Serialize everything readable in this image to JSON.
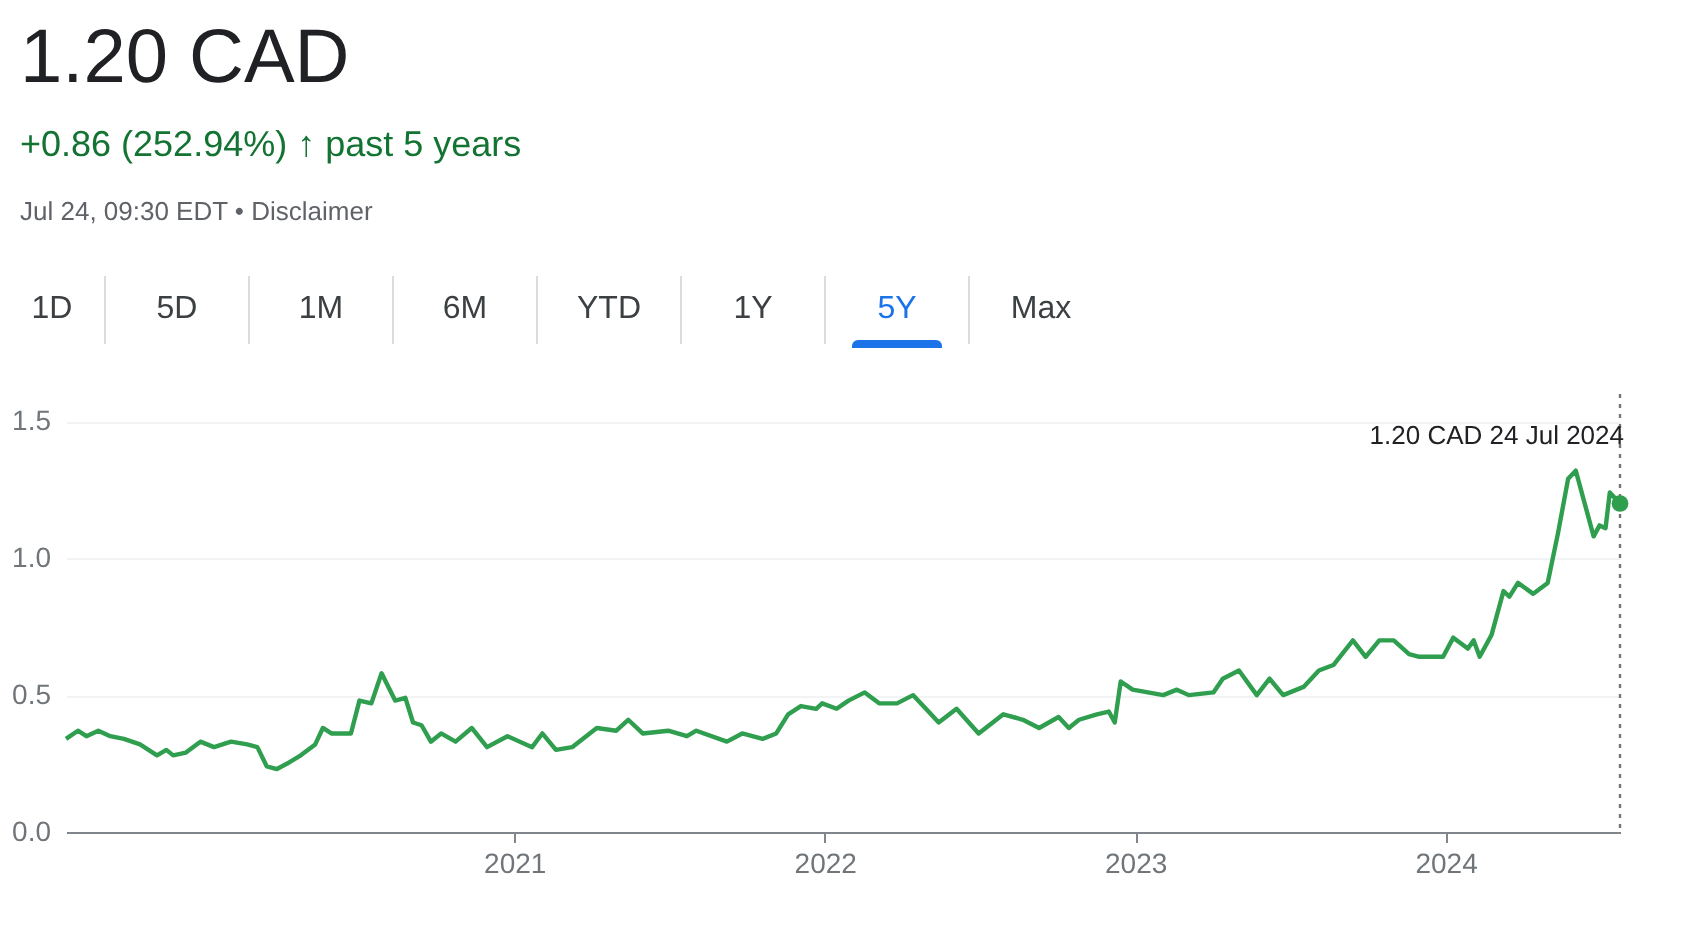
{
  "chart_data": {
    "type": "line",
    "title": "1.20 CAD",
    "subtitle": "+0.86 (252.94%) ↑ past 5 years",
    "annotations": [
      "Jul 24, 09:30 EDT • Disclaimer",
      "1D",
      "5D",
      "1M",
      "6M",
      "YTD",
      "1Y",
      "5Y",
      "Max",
      {
        "text": "1.20 CAD  24 Jul 2024",
        "x": "2024-07-24",
        "y": 1.2
      }
    ],
    "x": [
      "2019-07-24",
      "2019-08-07",
      "2019-08-17",
      "2019-08-31",
      "2019-09-14",
      "2019-09-30",
      "2019-10-19",
      "2019-11-08",
      "2019-11-19",
      "2019-11-27",
      "2019-12-12",
      "2019-12-29",
      "2020-01-14",
      "2020-02-03",
      "2020-02-22",
      "2020-03-05",
      "2020-03-16",
      "2020-03-28",
      "2020-04-09",
      "2020-04-25",
      "2020-05-12",
      "2020-05-21",
      "2020-05-31",
      "2020-06-23",
      "2020-07-03",
      "2020-07-17",
      "2020-07-29",
      "2020-08-14",
      "2020-08-26",
      "2020-09-04",
      "2020-09-14",
      "2020-09-25",
      "2020-10-07",
      "2020-10-24",
      "2020-11-12",
      "2020-11-30",
      "2020-12-24",
      "2021-01-22",
      "2021-02-03",
      "2021-02-19",
      "2021-03-10",
      "2021-04-08",
      "2021-05-01",
      "2021-05-15",
      "2021-06-01",
      "2021-07-01",
      "2021-07-23",
      "2021-08-03",
      "2021-09-08",
      "2021-09-26",
      "2021-10-20",
      "2021-11-05",
      "2021-11-19",
      "2021-12-04",
      "2021-12-22",
      "2021-12-29",
      "2022-01-15",
      "2022-01-29",
      "2022-02-17",
      "2022-03-06",
      "2022-03-27",
      "2022-04-15",
      "2022-05-03",
      "2022-05-15",
      "2022-06-05",
      "2022-07-01",
      "2022-07-30",
      "2022-08-22",
      "2022-09-10",
      "2022-10-03",
      "2022-10-15",
      "2022-10-27",
      "2022-11-17",
      "2022-12-01",
      "2022-12-08",
      "2022-12-15",
      "2022-12-29",
      "2023-02-03",
      "2023-02-19",
      "2023-03-05",
      "2023-04-03",
      "2023-04-14",
      "2023-05-03",
      "2023-05-24",
      "2023-06-08",
      "2023-06-24",
      "2023-07-18",
      "2023-08-05",
      "2023-08-22",
      "2023-09-14",
      "2023-09-29",
      "2023-10-15",
      "2023-11-01",
      "2023-11-19",
      "2023-12-01",
      "2023-12-29",
      "2024-01-10",
      "2024-01-27",
      "2024-02-03",
      "2024-02-10",
      "2024-02-24",
      "2024-03-09",
      "2024-03-16",
      "2024-03-26",
      "2024-04-13",
      "2024-04-30",
      "2024-05-12",
      "2024-05-24",
      "2024-06-02",
      "2024-06-23",
      "2024-06-30",
      "2024-07-07",
      "2024-07-12",
      "2024-07-24"
    ],
    "series": [
      {
        "color": "#2f9e4f",
        "values": [
          0.34,
          0.37,
          0.35,
          0.37,
          0.35,
          0.34,
          0.32,
          0.28,
          0.3,
          0.28,
          0.29,
          0.33,
          0.31,
          0.33,
          0.32,
          0.31,
          0.24,
          0.23,
          0.25,
          0.28,
          0.32,
          0.38,
          0.36,
          0.36,
          0.48,
          0.47,
          0.58,
          0.48,
          0.49,
          0.4,
          0.39,
          0.33,
          0.36,
          0.33,
          0.38,
          0.31,
          0.35,
          0.31,
          0.36,
          0.3,
          0.31,
          0.38,
          0.37,
          0.41,
          0.36,
          0.37,
          0.35,
          0.37,
          0.33,
          0.36,
          0.34,
          0.36,
          0.43,
          0.46,
          0.45,
          0.47,
          0.45,
          0.48,
          0.51,
          0.47,
          0.47,
          0.5,
          0.44,
          0.4,
          0.45,
          0.36,
          0.43,
          0.41,
          0.38,
          0.42,
          0.38,
          0.41,
          0.43,
          0.44,
          0.4,
          0.55,
          0.52,
          0.5,
          0.52,
          0.5,
          0.51,
          0.56,
          0.59,
          0.5,
          0.56,
          0.5,
          0.53,
          0.59,
          0.61,
          0.7,
          0.64,
          0.7,
          0.7,
          0.65,
          0.64,
          0.64,
          0.71,
          0.67,
          0.7,
          0.64,
          0.72,
          0.88,
          0.86,
          0.91,
          0.87,
          0.91,
          1.09,
          1.29,
          1.32,
          1.08,
          1.12,
          1.11,
          1.24,
          1.2
        ]
      }
    ],
    "xlim": [
      "2019-07-24",
      "2024-07-24"
    ],
    "xticks": [
      {
        "value": "2021-01-01",
        "label": "2021"
      },
      {
        "value": "2022-01-01",
        "label": "2022"
      },
      {
        "value": "2023-01-01",
        "label": "2023"
      },
      {
        "value": "2024-01-01",
        "label": "2024"
      }
    ],
    "ylim": [
      0,
      1.6
    ],
    "yticks": [
      {
        "value": 0,
        "label": "0.0"
      },
      {
        "value": 0.5,
        "label": "0.5"
      },
      {
        "value": 1,
        "label": "1.0"
      },
      {
        "value": 1.5,
        "label": "1.5"
      }
    ],
    "grid": "y",
    "marker": "none",
    "line_style": "solid",
    "ref_lines": [
      {
        "axis": "x",
        "value": "2024-07-24",
        "color": "#757575",
        "line_style": "dotted"
      }
    ]
  }
}
